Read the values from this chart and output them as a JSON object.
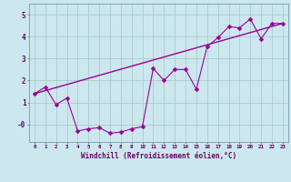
{
  "xlabel": "Windchill (Refroidissement éolien,°C)",
  "bg_color": "#cce8ee",
  "line_color": "#990099",
  "grid_color": "#aacccc",
  "x_data": [
    0,
    1,
    2,
    3,
    4,
    5,
    6,
    7,
    8,
    9,
    10,
    11,
    12,
    13,
    14,
    15,
    16,
    17,
    18,
    19,
    20,
    21,
    22,
    23
  ],
  "y_scatter": [
    1.4,
    1.7,
    0.9,
    1.2,
    -0.3,
    -0.2,
    -0.15,
    -0.4,
    -0.35,
    -0.2,
    -0.1,
    2.55,
    2.0,
    2.5,
    2.5,
    1.6,
    3.55,
    3.95,
    4.45,
    4.4,
    4.8,
    3.9,
    4.6,
    4.6
  ],
  "trend_x": [
    0,
    23
  ],
  "trend_y": [
    1.4,
    4.6
  ],
  "ylim": [
    -0.8,
    5.5
  ],
  "xlim": [
    -0.5,
    23.5
  ],
  "yticks": [
    5,
    4,
    3,
    2,
    1,
    0
  ],
  "ytick_labels": [
    "5",
    "4",
    "3",
    "2",
    "1",
    "-0"
  ]
}
